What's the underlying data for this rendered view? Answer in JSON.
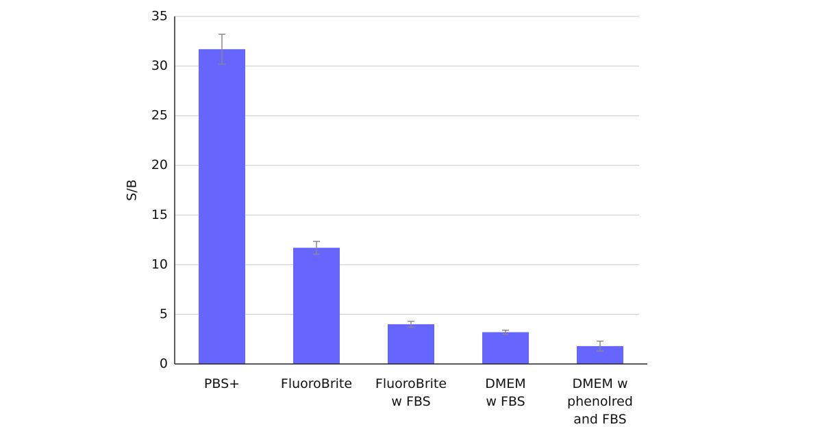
{
  "chart_data": {
    "type": "bar",
    "ylabel": "S/B",
    "categories": [
      "PBS+",
      "FluoroBrite",
      "FluoroBrite\nw FBS",
      "DMEM\nw FBS",
      "DMEM w\nphenolred\nand FBS"
    ],
    "values": [
      31.7,
      11.7,
      4.0,
      3.2,
      1.8
    ],
    "errors": [
      1.5,
      0.65,
      0.3,
      0.2,
      0.5
    ],
    "color": "#6666ff",
    "ylim": [
      0,
      35
    ],
    "yticks": [
      0,
      5,
      10,
      15,
      20,
      25,
      30,
      35
    ],
    "grid": true
  }
}
